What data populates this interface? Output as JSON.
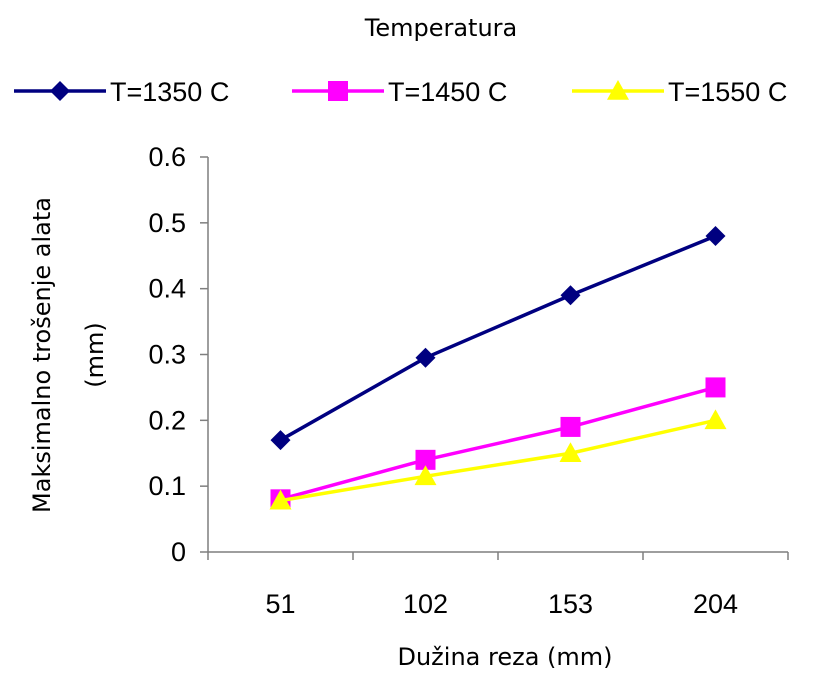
{
  "chart_data": {
    "type": "line",
    "title": "Temperatura",
    "xlabel": "Dužina reza (mm)",
    "ylabel_lines": [
      "Maksimalno trošenje alata",
      "(mm)"
    ],
    "categories": [
      "51",
      "102",
      "153",
      "204"
    ],
    "ylim": [
      0,
      0.6
    ],
    "yticks": [
      "0",
      "0.1",
      "0.2",
      "0.3",
      "0.4",
      "0.5",
      "0.6"
    ],
    "grid": false,
    "legend_position": "top",
    "series": [
      {
        "name": "T=1350 C",
        "color": "#000080",
        "marker": "diamond",
        "values": [
          0.17,
          0.295,
          0.39,
          0.48
        ]
      },
      {
        "name": "T=1450 C",
        "color": "#ff00ff",
        "marker": "square",
        "values": [
          0.08,
          0.14,
          0.19,
          0.25
        ]
      },
      {
        "name": "T=1550 C",
        "color": "#ffff00",
        "marker": "triangle",
        "values": [
          0.078,
          0.115,
          0.15,
          0.2
        ]
      }
    ]
  }
}
